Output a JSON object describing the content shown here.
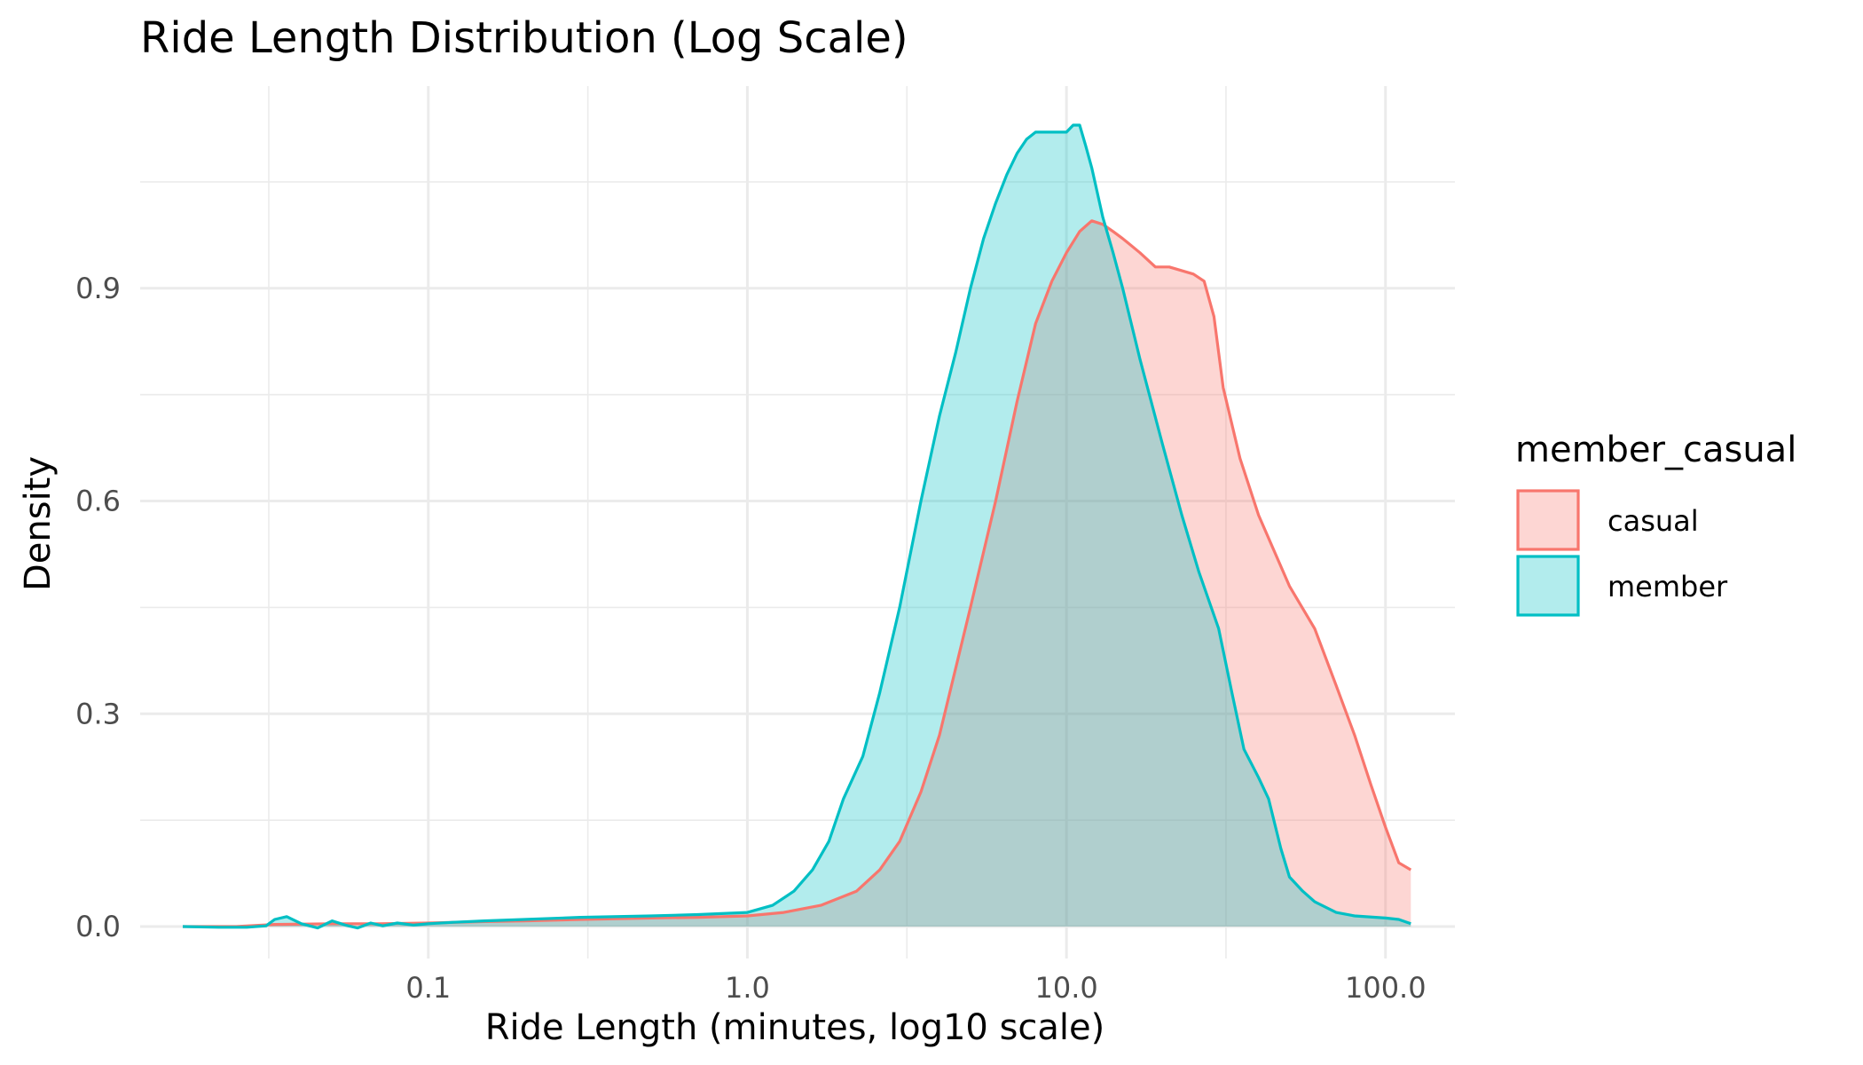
{
  "chart_data": {
    "type": "area",
    "title": "Ride Length Distribution (Log Scale)",
    "xlabel": "Ride Length (minutes, log10 scale)",
    "ylabel": "Density",
    "x_scale": "log10",
    "xlim": [
      0.0125,
      165
    ],
    "ylim": [
      -0.045,
      1.185
    ],
    "x_ticks": [
      0.1,
      1.0,
      10.0,
      100.0
    ],
    "x_tick_labels": [
      "0.1",
      "1.0",
      "10.0",
      "100.0"
    ],
    "y_ticks": [
      0.0,
      0.3,
      0.6,
      0.9
    ],
    "y_tick_labels": [
      "0.0",
      "0.3",
      "0.6",
      "0.9"
    ],
    "grid": true,
    "legend": {
      "title": "member_casual",
      "position": "right"
    },
    "series": [
      {
        "name": "casual",
        "line_color": "#F8766D",
        "fill_color": "#F8766D",
        "fill_opacity": 0.3,
        "x": [
          0.017,
          0.025,
          0.033,
          0.05,
          0.07,
          0.1,
          0.15,
          0.2,
          0.3,
          0.5,
          0.7,
          1.0,
          1.3,
          1.7,
          2.2,
          2.6,
          3.0,
          3.5,
          4.0,
          5.0,
          6.0,
          7.0,
          8.0,
          9.0,
          10.0,
          11.0,
          12.0,
          13.0,
          14.0,
          15.0,
          17.0,
          19.0,
          21.0,
          25.0,
          27.0,
          29.0,
          31.0,
          35.0,
          40.0,
          50.0,
          60.0,
          70.0,
          80.0,
          90.0,
          100.0,
          110.0,
          120.0
        ],
        "y": [
          0.0,
          0.0,
          0.003,
          0.004,
          0.004,
          0.005,
          0.007,
          0.008,
          0.01,
          0.012,
          0.013,
          0.015,
          0.02,
          0.03,
          0.05,
          0.08,
          0.12,
          0.19,
          0.27,
          0.45,
          0.6,
          0.74,
          0.85,
          0.91,
          0.95,
          0.98,
          0.995,
          0.99,
          0.98,
          0.97,
          0.95,
          0.93,
          0.93,
          0.92,
          0.91,
          0.86,
          0.76,
          0.66,
          0.58,
          0.48,
          0.42,
          0.34,
          0.27,
          0.2,
          0.14,
          0.09,
          0.08
        ]
      },
      {
        "name": "member",
        "line_color": "#00BFC4",
        "fill_color": "#00BFC4",
        "fill_opacity": 0.3,
        "x": [
          0.017,
          0.022,
          0.027,
          0.031,
          0.033,
          0.036,
          0.04,
          0.045,
          0.05,
          0.055,
          0.06,
          0.066,
          0.072,
          0.08,
          0.09,
          0.1,
          0.12,
          0.15,
          0.2,
          0.3,
          0.5,
          0.7,
          1.0,
          1.2,
          1.4,
          1.6,
          1.8,
          2.0,
          2.3,
          2.6,
          3.0,
          3.5,
          4.0,
          4.5,
          5.0,
          5.5,
          6.0,
          6.5,
          7.0,
          7.5,
          8.0,
          9.0,
          10.0,
          10.5,
          11.0,
          11.5,
          12.0,
          13.0,
          14.0,
          15.0,
          17.0,
          20.0,
          23.0,
          26.0,
          30.0,
          33.0,
          36.0,
          40.0,
          43.0,
          47.0,
          50.0,
          55.0,
          60.0,
          70.0,
          80.0,
          100.0,
          110.0,
          120.0
        ],
        "y": [
          0.0,
          -0.001,
          -0.001,
          0.001,
          0.01,
          0.014,
          0.004,
          -0.002,
          0.008,
          0.002,
          -0.002,
          0.005,
          0.001,
          0.005,
          0.002,
          0.004,
          0.006,
          0.008,
          0.01,
          0.013,
          0.015,
          0.017,
          0.02,
          0.03,
          0.05,
          0.08,
          0.12,
          0.18,
          0.24,
          0.33,
          0.45,
          0.6,
          0.72,
          0.81,
          0.9,
          0.97,
          1.02,
          1.06,
          1.09,
          1.11,
          1.12,
          1.12,
          1.12,
          1.13,
          1.13,
          1.1,
          1.07,
          1.0,
          0.95,
          0.9,
          0.8,
          0.68,
          0.58,
          0.5,
          0.42,
          0.33,
          0.25,
          0.21,
          0.18,
          0.11,
          0.07,
          0.05,
          0.035,
          0.02,
          0.015,
          0.012,
          0.01,
          0.004
        ]
      }
    ]
  }
}
